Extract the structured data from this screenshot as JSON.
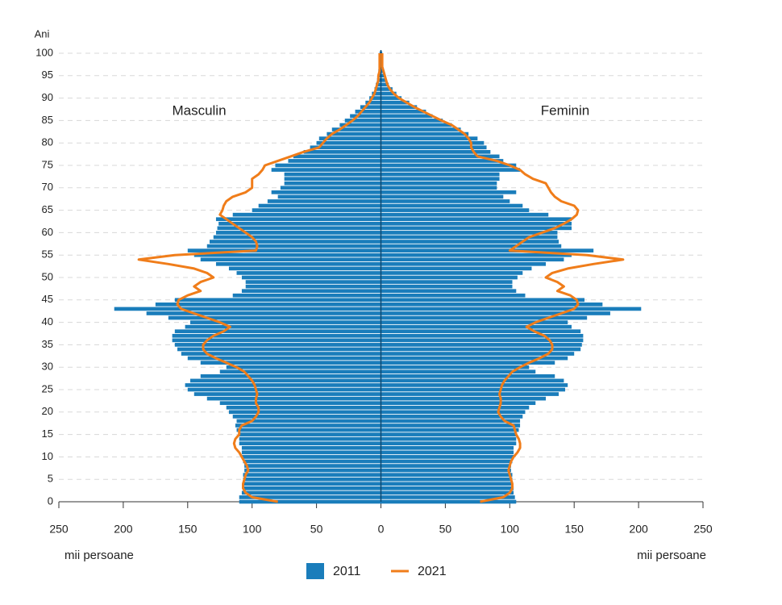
{
  "chart_data": {
    "type": "pyramid",
    "y_label": "Ani",
    "x_label": "mii persoane",
    "left_label": "Masculin",
    "right_label": "Feminin",
    "y": [
      0,
      1,
      2,
      3,
      4,
      5,
      6,
      7,
      8,
      9,
      10,
      11,
      12,
      13,
      14,
      15,
      16,
      17,
      18,
      19,
      20,
      21,
      22,
      23,
      24,
      25,
      26,
      27,
      28,
      29,
      30,
      31,
      32,
      33,
      34,
      35,
      36,
      37,
      38,
      39,
      40,
      41,
      42,
      43,
      44,
      45,
      46,
      47,
      48,
      49,
      50,
      51,
      52,
      53,
      54,
      55,
      56,
      57,
      58,
      59,
      60,
      61,
      62,
      63,
      64,
      65,
      66,
      67,
      68,
      69,
      70,
      71,
      72,
      73,
      74,
      75,
      76,
      77,
      78,
      79,
      80,
      81,
      82,
      83,
      84,
      85,
      86,
      87,
      88,
      89,
      90,
      91,
      92,
      93,
      94,
      95,
      96,
      97,
      98,
      99,
      100
    ],
    "ylim": [
      0,
      100
    ],
    "yticks": [
      0,
      5,
      10,
      15,
      20,
      25,
      30,
      35,
      40,
      45,
      50,
      55,
      60,
      65,
      70,
      75,
      80,
      85,
      90,
      95,
      100
    ],
    "xlim": [
      -250,
      250
    ],
    "xticks": [
      {
        "value": -250,
        "label": "250"
      },
      {
        "value": -200,
        "label": "200"
      },
      {
        "value": -150,
        "label": "150"
      },
      {
        "value": -100,
        "label": "100"
      },
      {
        "value": -50,
        "label": "50"
      },
      0,
      50,
      100,
      150,
      200,
      250
    ],
    "grid": true,
    "series": [
      {
        "name": "2011",
        "color": "#1a7dbb",
        "mark": "bar",
        "male": [
          110,
          110,
          108,
          107,
          107,
          107,
          107,
          106,
          106,
          107,
          108,
          108,
          108,
          110,
          110,
          110,
          112,
          113,
          112,
          115,
          118,
          120,
          125,
          135,
          145,
          150,
          152,
          148,
          140,
          125,
          120,
          140,
          150,
          155,
          158,
          160,
          162,
          162,
          160,
          152,
          148,
          165,
          182,
          207,
          175,
          160,
          115,
          108,
          105,
          105,
          108,
          112,
          118,
          128,
          140,
          145,
          150,
          135,
          133,
          130,
          128,
          127,
          126,
          128,
          115,
          100,
          95,
          88,
          80,
          85,
          78,
          75,
          75,
          75,
          85,
          82,
          72,
          68,
          60,
          55,
          50,
          48,
          42,
          38,
          32,
          28,
          24,
          20,
          16,
          12,
          9,
          7,
          5,
          4,
          3,
          2,
          2,
          1,
          1,
          1,
          1
        ],
        "female": [
          105,
          104,
          103,
          103,
          102,
          102,
          102,
          101,
          101,
          102,
          103,
          103,
          103,
          105,
          105,
          105,
          107,
          108,
          108,
          110,
          112,
          115,
          120,
          128,
          138,
          143,
          145,
          142,
          135,
          120,
          115,
          135,
          145,
          150,
          155,
          156,
          157,
          157,
          155,
          148,
          145,
          160,
          178,
          202,
          172,
          158,
          112,
          105,
          102,
          102,
          106,
          110,
          117,
          128,
          142,
          148,
          165,
          140,
          138,
          137,
          137,
          148,
          148,
          148,
          130,
          115,
          110,
          100,
          95,
          105,
          90,
          90,
          92,
          92,
          108,
          105,
          95,
          92,
          85,
          82,
          80,
          75,
          68,
          62,
          55,
          48,
          40,
          35,
          28,
          22,
          16,
          12,
          9,
          6,
          4,
          3,
          2,
          1,
          1,
          1,
          1
        ]
      },
      {
        "name": "2021",
        "color": "#f07d1a",
        "mark": "line",
        "male": [
          80,
          100,
          105,
          107,
          107,
          106,
          105,
          103,
          104,
          106,
          108,
          110,
          113,
          114,
          113,
          110,
          110,
          108,
          100,
          97,
          95,
          95,
          97,
          97,
          96,
          97,
          98,
          100,
          103,
          106,
          112,
          120,
          128,
          135,
          138,
          138,
          135,
          130,
          122,
          117,
          125,
          135,
          145,
          155,
          158,
          157,
          150,
          140,
          145,
          140,
          130,
          135,
          145,
          165,
          188,
          160,
          97,
          96,
          97,
          100,
          105,
          110,
          115,
          120,
          125,
          123,
          122,
          120,
          115,
          105,
          100,
          100,
          100,
          95,
          92,
          90,
          80,
          70,
          60,
          48,
          45,
          42,
          38,
          32,
          27,
          22,
          18,
          15,
          12,
          9,
          7,
          5,
          4,
          3,
          2,
          2,
          1,
          1,
          1,
          1,
          1
        ],
        "female": [
          77,
          95,
          100,
          102,
          102,
          101,
          100,
          99,
          100,
          101,
          103,
          106,
          108,
          108,
          107,
          105,
          104,
          103,
          96,
          93,
          91,
          92,
          93,
          93,
          92,
          93,
          94,
          96,
          99,
          102,
          108,
          115,
          123,
          130,
          133,
          133,
          131,
          127,
          119,
          113,
          120,
          130,
          140,
          150,
          153,
          152,
          147,
          137,
          142,
          137,
          128,
          133,
          145,
          165,
          188,
          160,
          100,
          105,
          110,
          115,
          125,
          135,
          142,
          148,
          152,
          153,
          150,
          140,
          135,
          132,
          130,
          128,
          118,
          112,
          108,
          100,
          90,
          75,
          72,
          70,
          70,
          68,
          65,
          60,
          55,
          47,
          40,
          33,
          26,
          20,
          14,
          10,
          7,
          5,
          4,
          3,
          2,
          1,
          1,
          1,
          1
        ]
      }
    ]
  }
}
